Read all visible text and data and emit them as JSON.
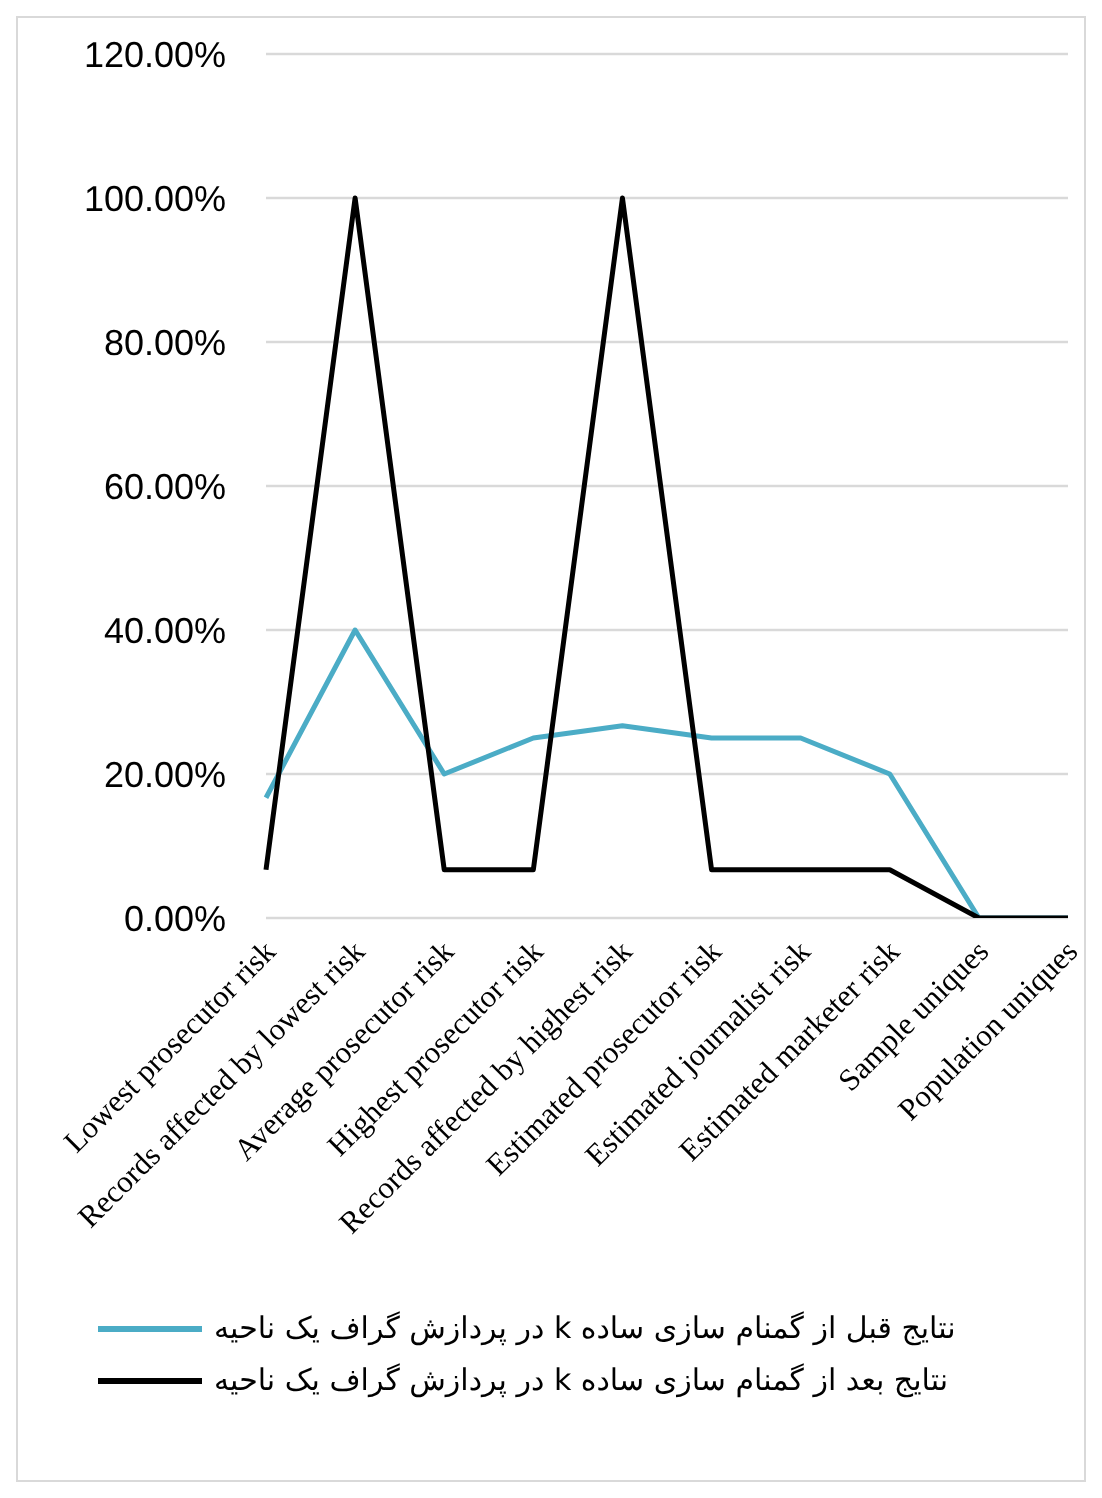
{
  "chart_data": {
    "type": "line",
    "categories": [
      "Lowest prosecutor risk",
      "Records affected by lowest risk",
      "Average prosecutor risk",
      "Highest prosecutor risk",
      "Records affected by highest risk",
      "Estimated prosecutor risk",
      "Estimated journalist risk",
      "Estimated marketer risk",
      "Sample uniques",
      "Population uniques"
    ],
    "series": [
      {
        "name": "نتایج قبل از گمنام سازی ساده k در پردازش گراف یک ناحیه",
        "color": "#4bacc6",
        "values": [
          16.7,
          40,
          20,
          25,
          26.7,
          25,
          25,
          20,
          0,
          0
        ]
      },
      {
        "name": "نتایج بعد از گمنام سازی ساده k در پردازش گراف یک ناحیه",
        "color": "#000000",
        "values": [
          6.7,
          100,
          6.7,
          6.7,
          100,
          6.7,
          6.7,
          6.7,
          0,
          0
        ]
      }
    ],
    "ylim": [
      0,
      120
    ],
    "yticks": [
      {
        "value": 0,
        "label": "0.00%"
      },
      {
        "value": 20,
        "label": "20.00%"
      },
      {
        "value": 40,
        "label": "40.00%"
      },
      {
        "value": 60,
        "label": "60.00%"
      },
      {
        "value": 80,
        "label": "80.00%"
      },
      {
        "value": 100,
        "label": "100.00%"
      },
      {
        "value": 120,
        "label": "120.00%"
      }
    ],
    "grid": "y",
    "legend": "bottom",
    "marker": "none",
    "line_style": "solid"
  }
}
